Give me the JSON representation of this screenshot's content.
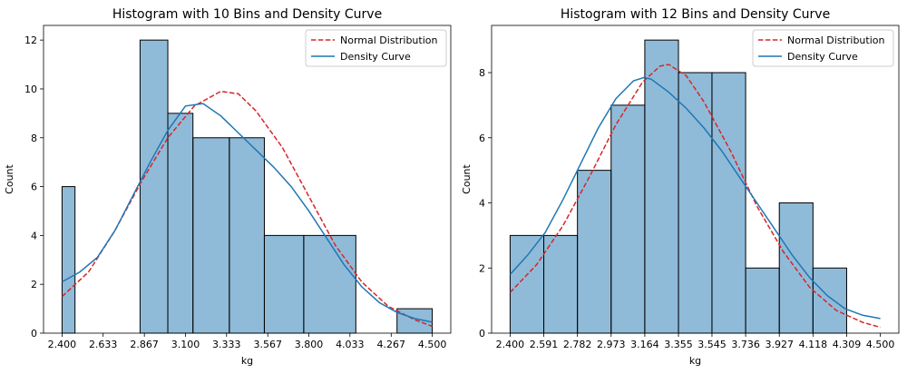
{
  "chart_data": [
    {
      "type": "bar",
      "title": "Histogram with 10 Bins and Density Curve",
      "xlabel": "kg",
      "ylabel": "Count",
      "xlim": [
        2.295,
        4.605
      ],
      "ylim": [
        0,
        12.6
      ],
      "x_ticks": [
        2.4,
        2.633,
        2.867,
        3.1,
        3.333,
        3.567,
        3.8,
        4.033,
        4.267,
        4.5
      ],
      "x_tick_labels": [
        "2.400",
        "2.633",
        "2.867",
        "3.100",
        "3.333",
        "3.567",
        "3.800",
        "4.033",
        "4.267",
        "4.500"
      ],
      "y_ticks": [
        0,
        2,
        4,
        6,
        8,
        10,
        12
      ],
      "y_tick_labels": [
        "0",
        "2",
        "4",
        "6",
        "8",
        "10",
        "12"
      ],
      "bins": [
        {
          "start": 2.4,
          "end": 2.4735,
          "count": 6
        },
        {
          "start": 2.4735,
          "end": 2.8425,
          "count": 0
        },
        {
          "start": 2.8425,
          "end": 3.0,
          "count": 12
        },
        {
          "start": 3.0,
          "end": 3.1425,
          "count": 9
        },
        {
          "start": 3.1425,
          "end": 3.349,
          "count": 8
        },
        {
          "start": 3.349,
          "end": 3.5475,
          "count": 8
        },
        {
          "start": 3.5475,
          "end": 3.771,
          "count": 4
        },
        {
          "start": 3.771,
          "end": 4.0665,
          "count": 4
        },
        {
          "start": 4.0665,
          "end": 4.3,
          "count": 0
        },
        {
          "start": 4.3,
          "end": 4.5,
          "count": 1
        }
      ],
      "series": [
        {
          "name": "Normal Distribution",
          "color": "#d62728",
          "style": "dashed",
          "x": [
            2.4,
            2.55,
            2.7,
            2.85,
            3.0,
            3.15,
            3.3,
            3.4,
            3.5,
            3.65,
            3.8,
            3.95,
            4.1,
            4.25,
            4.4,
            4.5
          ],
          "y": [
            1.5,
            2.5,
            4.2,
            6.2,
            8.0,
            9.3,
            9.9,
            9.8,
            9.1,
            7.6,
            5.6,
            3.6,
            2.1,
            1.1,
            0.55,
            0.28
          ]
        },
        {
          "name": "Density Curve",
          "color": "#1f77b4",
          "style": "solid",
          "x": [
            2.4,
            2.5,
            2.6,
            2.7,
            2.8,
            2.9,
            3.0,
            3.1,
            3.2,
            3.3,
            3.4,
            3.5,
            3.6,
            3.7,
            3.8,
            3.9,
            4.0,
            4.1,
            4.2,
            4.3,
            4.4,
            4.5
          ],
          "y": [
            2.1,
            2.5,
            3.1,
            4.2,
            5.6,
            7.0,
            8.3,
            9.3,
            9.4,
            8.9,
            8.2,
            7.5,
            6.8,
            6.0,
            5.0,
            3.9,
            2.8,
            1.9,
            1.25,
            0.85,
            0.6,
            0.45
          ]
        }
      ],
      "legend": "top-right",
      "grid": false
    },
    {
      "type": "bar",
      "title": "Histogram with 12 Bins and Density Curve",
      "xlabel": "kg",
      "ylabel": "Count",
      "xlim": [
        2.295,
        4.605
      ],
      "ylim": [
        0,
        9.45
      ],
      "x_ticks": [
        2.4,
        2.591,
        2.782,
        2.973,
        3.164,
        3.355,
        3.545,
        3.736,
        3.927,
        4.118,
        4.309,
        4.5
      ],
      "x_tick_labels": [
        "2.400",
        "2.591",
        "2.782",
        "2.973",
        "3.164",
        "3.355",
        "3.545",
        "3.736",
        "3.927",
        "4.118",
        "4.309",
        "4.500"
      ],
      "y_ticks": [
        0,
        2,
        4,
        6,
        8
      ],
      "y_tick_labels": [
        "0",
        "2",
        "4",
        "6",
        "8"
      ],
      "bins": [
        {
          "start": 2.4,
          "end": 2.591,
          "count": 3
        },
        {
          "start": 2.591,
          "end": 2.782,
          "count": 3
        },
        {
          "start": 2.782,
          "end": 2.973,
          "count": 5
        },
        {
          "start": 2.973,
          "end": 3.164,
          "count": 7
        },
        {
          "start": 3.164,
          "end": 3.355,
          "count": 9
        },
        {
          "start": 3.355,
          "end": 3.545,
          "count": 8
        },
        {
          "start": 3.545,
          "end": 3.736,
          "count": 8
        },
        {
          "start": 3.736,
          "end": 3.927,
          "count": 2
        },
        {
          "start": 3.927,
          "end": 4.118,
          "count": 4
        },
        {
          "start": 4.118,
          "end": 4.309,
          "count": 2
        },
        {
          "start": 4.309,
          "end": 4.5,
          "count": 0
        },
        {
          "start": 4.5,
          "end": 4.5,
          "count": 0
        }
      ],
      "series": [
        {
          "name": "Normal Distribution",
          "color": "#d62728",
          "style": "dashed",
          "x": [
            2.4,
            2.55,
            2.7,
            2.85,
            3.0,
            3.15,
            3.25,
            3.3,
            3.4,
            3.5,
            3.65,
            3.8,
            3.95,
            4.1,
            4.25,
            4.4,
            4.5
          ],
          "y": [
            1.25,
            2.1,
            3.3,
            4.8,
            6.4,
            7.7,
            8.2,
            8.25,
            7.9,
            7.1,
            5.6,
            3.9,
            2.5,
            1.4,
            0.7,
            0.33,
            0.18
          ]
        },
        {
          "name": "Density Curve",
          "color": "#1f77b4",
          "style": "solid",
          "x": [
            2.4,
            2.5,
            2.6,
            2.7,
            2.8,
            2.9,
            3.0,
            3.1,
            3.16,
            3.2,
            3.3,
            3.4,
            3.5,
            3.6,
            3.7,
            3.8,
            3.9,
            4.0,
            4.1,
            4.2,
            4.3,
            4.4,
            4.5
          ],
          "y": [
            1.8,
            2.4,
            3.1,
            4.1,
            5.2,
            6.3,
            7.2,
            7.75,
            7.85,
            7.8,
            7.4,
            6.9,
            6.3,
            5.6,
            4.8,
            4.0,
            3.2,
            2.4,
            1.7,
            1.15,
            0.75,
            0.55,
            0.45
          ]
        }
      ],
      "legend": "top-right",
      "grid": false
    }
  ]
}
